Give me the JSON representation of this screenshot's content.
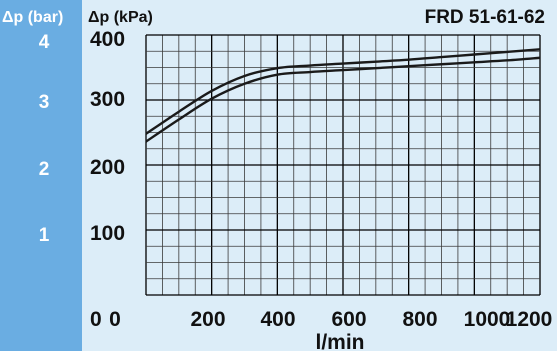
{
  "colors": {
    "page_bg": "#ffffff",
    "left_band": "#6aade2",
    "plot_bg": "#dcedf8",
    "grid_minor": "#3a3a3a",
    "grid_major": "#000000",
    "curve": "#1a1a1a"
  },
  "chart_data": {
    "type": "line",
    "title": "FRD 51-61-62",
    "xlabel": "l/min",
    "ylabel": "Δp (kPa)",
    "ylabel_secondary": "Δp (bar)",
    "xlim": [
      0,
      1200
    ],
    "ylim": [
      0,
      400
    ],
    "x_ticks": [
      "0",
      "200",
      "400",
      "600",
      "800",
      "1000",
      "1200"
    ],
    "y_ticks": [
      "400",
      "300",
      "200",
      "100",
      "0"
    ],
    "y_ticks_secondary": [
      "4",
      "3",
      "2",
      "1"
    ],
    "grid": true,
    "x_minor_step": 50,
    "y_minor_step": 25,
    "series": [
      {
        "x": [
          0,
          100,
          200,
          300,
          400,
          500,
          600,
          700,
          800,
          900,
          1000,
          1100,
          1200
        ],
        "values": [
          248,
          282,
          314,
          337,
          349,
          353,
          356,
          359,
          362,
          366,
          370,
          374,
          378
        ]
      },
      {
        "x": [
          0,
          100,
          200,
          300,
          400,
          500,
          600,
          700,
          800,
          900,
          1000,
          1100,
          1200
        ],
        "values": [
          236,
          270,
          302,
          325,
          339,
          343,
          346,
          349,
          352,
          355,
          358,
          361,
          365
        ]
      }
    ]
  }
}
